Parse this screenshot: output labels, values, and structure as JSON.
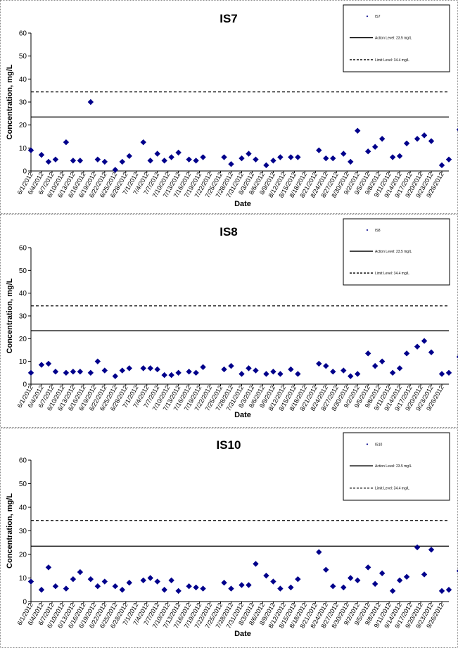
{
  "colors": {
    "marker": "#00008b",
    "line": "#000000",
    "background": "#ffffff"
  },
  "x_dates": [
    "6/1/2012",
    "6/4/2012",
    "6/7/2012",
    "6/10/2012",
    "6/13/2012",
    "6/16/2012",
    "6/19/2012",
    "6/22/2012",
    "6/25/2012",
    "6/28/2012",
    "7/1/2012",
    "7/4/2012",
    "7/7/2012",
    "7/10/2012",
    "7/13/2012",
    "7/16/2012",
    "7/19/2012",
    "7/22/2012",
    "7/25/2012",
    "7/28/2012",
    "7/31/2012",
    "8/3/2012",
    "8/6/2012",
    "8/9/2012",
    "8/12/2012",
    "8/15/2012",
    "8/18/2012",
    "8/21/2012",
    "8/24/2012",
    "8/27/2012",
    "8/30/2012",
    "9/2/2012",
    "9/5/2012",
    "9/8/2012",
    "9/11/2012",
    "9/14/2012",
    "9/17/2012",
    "9/20/2012",
    "9/23/2012",
    "9/26/2012"
  ],
  "chart_data": [
    {
      "type": "scatter",
      "title": "IS7",
      "xlabel": "Date",
      "ylabel": "Concentration, mg/L",
      "ylim": [
        0,
        60
      ],
      "yticks": [
        0,
        10,
        20,
        30,
        40,
        50,
        60
      ],
      "xlim": [
        "6/1/2012",
        "9/28/2012"
      ],
      "grid": false,
      "legend_position": "top-right",
      "legend": {
        "marker": "IS7",
        "action": "Action Level: 23.5 mg/L",
        "limit": "Limit Level: 34.4 mg/L"
      },
      "reference_lines": [
        {
          "value": 23.5,
          "style": "solid"
        },
        {
          "value": 34.4,
          "style": "dashed"
        }
      ],
      "points": [
        [
          "6/1/2012",
          9
        ],
        [
          "6/4/2012",
          7
        ],
        [
          "6/6/2012",
          4
        ],
        [
          "6/8/2012",
          5
        ],
        [
          "6/11/2012",
          12.5
        ],
        [
          "6/13/2012",
          4.5
        ],
        [
          "6/15/2012",
          4.5
        ],
        [
          "6/18/2012",
          30
        ],
        [
          "6/20/2012",
          5
        ],
        [
          "6/22/2012",
          4
        ],
        [
          "6/25/2012",
          0.5
        ],
        [
          "6/27/2012",
          4
        ],
        [
          "6/29/2012",
          6.5
        ],
        [
          "7/3/2012",
          12.5
        ],
        [
          "7/5/2012",
          4.5
        ],
        [
          "7/7/2012",
          7.5
        ],
        [
          "7/9/2012",
          4.5
        ],
        [
          "7/11/2012",
          6
        ],
        [
          "7/13/2012",
          8
        ],
        [
          "7/16/2012",
          5
        ],
        [
          "7/18/2012",
          4.5
        ],
        [
          "7/20/2012",
          6
        ],
        [
          "7/26/2012",
          6
        ],
        [
          "7/28/2012",
          3
        ],
        [
          "7/31/2012",
          5.5
        ],
        [
          "8/2/2012",
          7.5
        ],
        [
          "8/4/2012",
          5
        ],
        [
          "8/7/2012",
          2.5
        ],
        [
          "8/9/2012",
          4.5
        ],
        [
          "8/11/2012",
          6
        ],
        [
          "8/14/2012",
          6
        ],
        [
          "8/16/2012",
          6
        ],
        [
          "8/22/2012",
          9
        ],
        [
          "8/24/2012",
          5.5
        ],
        [
          "8/26/2012",
          5.5
        ],
        [
          "8/29/2012",
          7.5
        ],
        [
          "8/31/2012",
          4
        ],
        [
          "9/2/2012",
          17.5
        ],
        [
          "9/5/2012",
          8.5
        ],
        [
          "9/7/2012",
          10.5
        ],
        [
          "9/9/2012",
          14
        ],
        [
          "9/12/2012",
          6
        ],
        [
          "9/14/2012",
          6.5
        ],
        [
          "9/16/2012",
          12
        ],
        [
          "9/19/2012",
          14
        ],
        [
          "9/21/2012",
          15.5
        ],
        [
          "9/23/2012",
          13
        ],
        [
          "9/26/2012",
          2.5
        ],
        [
          "9/28/2012",
          5
        ],
        [
          "10/1/2012",
          18
        ]
      ]
    },
    {
      "type": "scatter",
      "title": "IS8",
      "xlabel": "Date",
      "ylabel": "Concentration, mg/L",
      "ylim": [
        0,
        60
      ],
      "yticks": [
        0,
        10,
        20,
        30,
        40,
        50,
        60
      ],
      "xlim": [
        "6/1/2012",
        "9/28/2012"
      ],
      "grid": false,
      "legend_position": "top-right",
      "legend": {
        "marker": "IS8",
        "action": "Action Level: 23.5 mg/L",
        "limit": "Limit Level: 34.4 mg/L"
      },
      "reference_lines": [
        {
          "value": 23.5,
          "style": "solid"
        },
        {
          "value": 34.4,
          "style": "dashed"
        }
      ],
      "points": [
        [
          "6/1/2012",
          5
        ],
        [
          "6/4/2012",
          8.5
        ],
        [
          "6/6/2012",
          9
        ],
        [
          "6/8/2012",
          5.5
        ],
        [
          "6/11/2012",
          5
        ],
        [
          "6/13/2012",
          5.5
        ],
        [
          "6/15/2012",
          5.5
        ],
        [
          "6/18/2012",
          5
        ],
        [
          "6/20/2012",
          10
        ],
        [
          "6/22/2012",
          6
        ],
        [
          "6/25/2012",
          3.5
        ],
        [
          "6/27/2012",
          6
        ],
        [
          "6/29/2012",
          7
        ],
        [
          "7/3/2012",
          7
        ],
        [
          "7/5/2012",
          7
        ],
        [
          "7/7/2012",
          6.5
        ],
        [
          "7/9/2012",
          4
        ],
        [
          "7/11/2012",
          4
        ],
        [
          "7/13/2012",
          5
        ],
        [
          "7/16/2012",
          5.5
        ],
        [
          "7/18/2012",
          5
        ],
        [
          "7/20/2012",
          7.5
        ],
        [
          "7/26/2012",
          6.5
        ],
        [
          "7/28/2012",
          8
        ],
        [
          "7/31/2012",
          4.5
        ],
        [
          "8/2/2012",
          7
        ],
        [
          "8/4/2012",
          6
        ],
        [
          "8/7/2012",
          4.5
        ],
        [
          "8/9/2012",
          5.5
        ],
        [
          "8/11/2012",
          4.5
        ],
        [
          "8/14/2012",
          6.5
        ],
        [
          "8/16/2012",
          4.5
        ],
        [
          "8/22/2012",
          9
        ],
        [
          "8/24/2012",
          8
        ],
        [
          "8/26/2012",
          5.5
        ],
        [
          "8/29/2012",
          6
        ],
        [
          "8/31/2012",
          3.5
        ],
        [
          "9/2/2012",
          4.5
        ],
        [
          "9/5/2012",
          13.5
        ],
        [
          "9/7/2012",
          8
        ],
        [
          "9/9/2012",
          10
        ],
        [
          "9/12/2012",
          5
        ],
        [
          "9/14/2012",
          7
        ],
        [
          "9/16/2012",
          13.5
        ],
        [
          "9/19/2012",
          16.5
        ],
        [
          "9/21/2012",
          19
        ],
        [
          "9/23/2012",
          14
        ],
        [
          "9/26/2012",
          4.5
        ],
        [
          "9/28/2012",
          5
        ],
        [
          "10/1/2012",
          12
        ]
      ]
    },
    {
      "type": "scatter",
      "title": "IS10",
      "xlabel": "Date",
      "ylabel": "Concentration, mg/L",
      "ylim": [
        0,
        60
      ],
      "yticks": [
        0,
        10,
        20,
        30,
        40,
        50,
        60
      ],
      "xlim": [
        "6/1/2012",
        "9/28/2012"
      ],
      "grid": false,
      "legend_position": "top-right",
      "legend": {
        "marker": "IS10",
        "action": "Action Level: 23.5 mg/L",
        "limit": "Limit Level: 34.4 mg/L"
      },
      "reference_lines": [
        {
          "value": 23.5,
          "style": "solid"
        },
        {
          "value": 34.4,
          "style": "dashed"
        }
      ],
      "points": [
        [
          "6/1/2012",
          8.5
        ],
        [
          "6/4/2012",
          5
        ],
        [
          "6/6/2012",
          14.5
        ],
        [
          "6/8/2012",
          6.5
        ],
        [
          "6/11/2012",
          5.5
        ],
        [
          "6/13/2012",
          9.5
        ],
        [
          "6/15/2012",
          12.5
        ],
        [
          "6/18/2012",
          9.5
        ],
        [
          "6/20/2012",
          6.5
        ],
        [
          "6/22/2012",
          8.5
        ],
        [
          "6/25/2012",
          6.5
        ],
        [
          "6/27/2012",
          5
        ],
        [
          "6/29/2012",
          8
        ],
        [
          "7/3/2012",
          9
        ],
        [
          "7/5/2012",
          10
        ],
        [
          "7/7/2012",
          8.5
        ],
        [
          "7/9/2012",
          5
        ],
        [
          "7/11/2012",
          9
        ],
        [
          "7/13/2012",
          4.5
        ],
        [
          "7/16/2012",
          6.5
        ],
        [
          "7/18/2012",
          6
        ],
        [
          "7/20/2012",
          5.5
        ],
        [
          "7/26/2012",
          8
        ],
        [
          "7/28/2012",
          5.5
        ],
        [
          "7/31/2012",
          7
        ],
        [
          "8/2/2012",
          7
        ],
        [
          "8/4/2012",
          16
        ],
        [
          "8/7/2012",
          11
        ],
        [
          "8/9/2012",
          8.5
        ],
        [
          "8/11/2012",
          5.5
        ],
        [
          "8/14/2012",
          6
        ],
        [
          "8/16/2012",
          9.5
        ],
        [
          "8/22/2012",
          21
        ],
        [
          "8/24/2012",
          13.5
        ],
        [
          "8/26/2012",
          6.5
        ],
        [
          "8/29/2012",
          6
        ],
        [
          "8/31/2012",
          10
        ],
        [
          "9/2/2012",
          9
        ],
        [
          "9/5/2012",
          14.5
        ],
        [
          "9/7/2012",
          7.5
        ],
        [
          "9/9/2012",
          12
        ],
        [
          "9/12/2012",
          4.5
        ],
        [
          "9/14/2012",
          9
        ],
        [
          "9/16/2012",
          10.5
        ],
        [
          "9/19/2012",
          23
        ],
        [
          "9/21/2012",
          11.5
        ],
        [
          "9/23/2012",
          22
        ],
        [
          "9/26/2012",
          4.5
        ],
        [
          "9/28/2012",
          5
        ],
        [
          "10/1/2012",
          13
        ]
      ]
    }
  ]
}
